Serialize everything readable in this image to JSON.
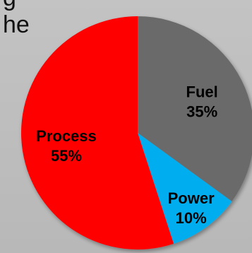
{
  "background_text": {
    "line1": "g",
    "line2": "he"
  },
  "chart_data": {
    "type": "pie",
    "categories": [
      "Fuel",
      "Power",
      "Process"
    ],
    "values": [
      35,
      10,
      55
    ],
    "value_labels": [
      "35%",
      "10%",
      "55%"
    ],
    "colors": [
      "#6a6a6a",
      "#00aeef",
      "#ff0000"
    ],
    "start_angle_deg": 0,
    "direction": "clockwise",
    "title": "",
    "legend": "none"
  }
}
